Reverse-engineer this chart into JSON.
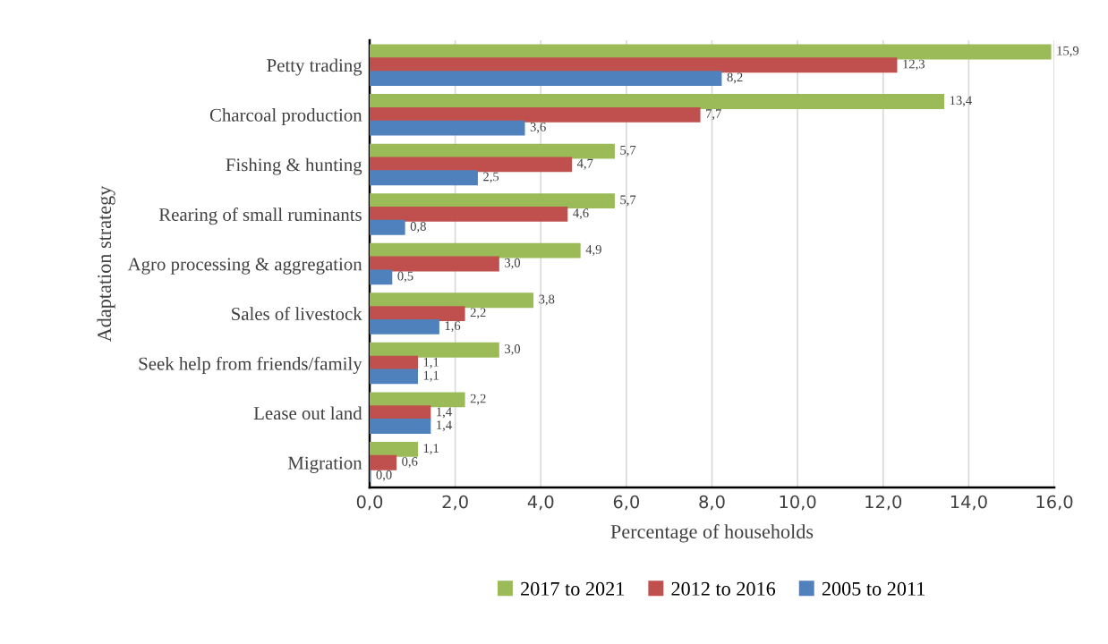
{
  "chart_data": {
    "type": "bar",
    "orientation": "horizontal",
    "xlabel": "Percentage of households",
    "ylabel": "Adaptation strategy",
    "categories": [
      "Petty trading",
      "Charcoal production",
      "Fishing & hunting",
      "Rearing of small ruminants",
      "Agro processing & aggregation",
      "Sales of livestock",
      "Seek help from friends/family",
      "Lease out land",
      "Migration"
    ],
    "series": [
      {
        "name": "2017 to 2021",
        "color": "#9bbb59",
        "values": [
          15.9,
          13.4,
          5.7,
          5.7,
          4.9,
          3.8,
          3.0,
          2.2,
          1.1
        ],
        "value_labels": [
          "15,9",
          "13,4",
          "5,7",
          "5,7",
          "4,9",
          "3,8",
          "3,0",
          "2,2",
          "1,1"
        ]
      },
      {
        "name": "2012 to 2016",
        "color": "#c0504d",
        "values": [
          12.3,
          7.7,
          4.7,
          4.6,
          3.0,
          2.2,
          1.1,
          1.4,
          0.6
        ],
        "value_labels": [
          "12,3",
          "7,7",
          "4,7",
          "4,6",
          "3,0",
          "2,2",
          "1,1",
          "1,4",
          "0,6"
        ]
      },
      {
        "name": "2005 to 2011",
        "color": "#4f81bd",
        "values": [
          8.2,
          3.6,
          2.5,
          0.8,
          0.5,
          1.6,
          1.1,
          1.4,
          0.0
        ],
        "value_labels": [
          "8,2",
          "3,6",
          "2,5",
          "0,8",
          "0,5",
          "1,6",
          "1,1",
          "1,4",
          "0,0"
        ]
      }
    ],
    "xlim": [
      0,
      16
    ],
    "xticks": [
      {
        "value": 0,
        "label": "0,0"
      },
      {
        "value": 2,
        "label": "2,0"
      },
      {
        "value": 4,
        "label": "4,0"
      },
      {
        "value": 6,
        "label": "6,0"
      },
      {
        "value": 8,
        "label": "8,0"
      },
      {
        "value": 10,
        "label": "10,0"
      },
      {
        "value": 12,
        "label": "12,0"
      },
      {
        "value": 14,
        "label": "14,0"
      },
      {
        "value": 16,
        "label": "16,0"
      }
    ],
    "grid": "x",
    "legend": "bottom"
  }
}
